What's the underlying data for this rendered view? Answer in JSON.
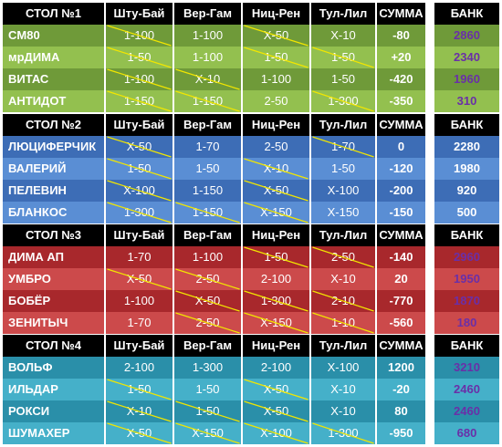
{
  "columns": [
    "Шту-Бай",
    "Вер-Гам",
    "Ниц-Рен",
    "Тул-Лил"
  ],
  "sum_label": "СУММА",
  "bank_label": "БАНК",
  "tables": [
    {
      "title": "СТОЛ №1",
      "color_dark": "#6f9a39",
      "color_light": "#93c04f",
      "rows": [
        {
          "name": "CM80",
          "cells": [
            "1-100",
            "1-100",
            "X-50",
            "X-10"
          ],
          "lost": [
            true,
            false,
            true,
            false
          ],
          "sum": "-80",
          "bank": "2860",
          "bank_color": "#6a2fa8"
        },
        {
          "name": "мрДИМА",
          "cells": [
            "1-50",
            "1-100",
            "1-50",
            "1-50"
          ],
          "lost": [
            true,
            false,
            true,
            true
          ],
          "sum": "+20",
          "bank": "2340",
          "bank_color": "#6a2fa8"
        },
        {
          "name": "ВИТАС",
          "cells": [
            "1-100",
            "X-10",
            "1-100",
            "1-50"
          ],
          "lost": [
            true,
            true,
            false,
            false
          ],
          "sum": "-420",
          "bank": "1960",
          "bank_color": "#6a2fa8"
        },
        {
          "name": "АНТИДОТ",
          "cells": [
            "1-150",
            "1-150",
            "2-50",
            "1-300"
          ],
          "lost": [
            true,
            true,
            false,
            true
          ],
          "sum": "-350",
          "bank": "310",
          "bank_color": "#6a2fa8"
        }
      ]
    },
    {
      "title": "СТОЛ №2",
      "color_dark": "#3d6db6",
      "color_light": "#5a8ed4",
      "rows": [
        {
          "name": "ЛЮЦИФЕРЧИК",
          "cells": [
            "X-50",
            "1-70",
            "2-50",
            "1-70"
          ],
          "lost": [
            true,
            false,
            false,
            true
          ],
          "sum": "0",
          "bank": "2280",
          "bank_color": "#ffffff"
        },
        {
          "name": "ВАЛЕРИЙ",
          "cells": [
            "1-50",
            "1-50",
            "X-10",
            "1-50"
          ],
          "lost": [
            true,
            false,
            true,
            false
          ],
          "sum": "-120",
          "bank": "1980",
          "bank_color": "#ffffff"
        },
        {
          "name": "ПЕЛЕВИН",
          "cells": [
            "X-100",
            "1-150",
            "X-50",
            "X-100"
          ],
          "lost": [
            true,
            false,
            true,
            false
          ],
          "sum": "-200",
          "bank": "920",
          "bank_color": "#ffffff"
        },
        {
          "name": "БЛАНКОС",
          "cells": [
            "1-300",
            "1-150",
            "X-150",
            "X-150"
          ],
          "lost": [
            true,
            true,
            true,
            false
          ],
          "sum": "-150",
          "bank": "500",
          "bank_color": "#ffffff"
        }
      ]
    },
    {
      "title": "СТОЛ №3",
      "color_dark": "#a8282c",
      "color_light": "#cc4a4b",
      "rows": [
        {
          "name": "ДИМА АП",
          "cells": [
            "1-70",
            "1-100",
            "1-50",
            "2-50"
          ],
          "lost": [
            false,
            false,
            true,
            true
          ],
          "sum": "-140",
          "bank": "2960",
          "bank_color": "#6a2fa8"
        },
        {
          "name": "УМБРО",
          "cells": [
            "X-50",
            "2-50",
            "2-100",
            "X-10"
          ],
          "lost": [
            true,
            true,
            false,
            false
          ],
          "sum": "20",
          "bank": "1950",
          "bank_color": "#6a2fa8"
        },
        {
          "name": "БОБЁР",
          "cells": [
            "1-100",
            "X-50",
            "1-300",
            "2-10"
          ],
          "lost": [
            false,
            true,
            true,
            true
          ],
          "sum": "-770",
          "bank": "1870",
          "bank_color": "#6a2fa8"
        },
        {
          "name": "ЗЕНИТЫЧ",
          "cells": [
            "1-70",
            "2-50",
            "Х-150",
            "1-10"
          ],
          "lost": [
            false,
            true,
            true,
            true
          ],
          "sum": "-560",
          "bank": "180",
          "bank_color": "#6a2fa8"
        }
      ]
    },
    {
      "title": "СТОЛ №4",
      "color_dark": "#2a8fa9",
      "color_light": "#45b0c9",
      "rows": [
        {
          "name": "ВОЛЬФ",
          "cells": [
            "2-100",
            "1-300",
            "2-100",
            "X-100"
          ],
          "lost": [
            false,
            false,
            false,
            false
          ],
          "sum": "1200",
          "bank": "3210",
          "bank_color": "#6a2fa8"
        },
        {
          "name": "ИЛЬДАР",
          "cells": [
            "1-50",
            "1-50",
            "X-50",
            "X-10"
          ],
          "lost": [
            true,
            false,
            true,
            false
          ],
          "sum": "-20",
          "bank": "2460",
          "bank_color": "#6a2fa8"
        },
        {
          "name": "РОКСИ",
          "cells": [
            "X-10",
            "1-50",
            "X-50",
            "X-10"
          ],
          "lost": [
            true,
            true,
            true,
            false
          ],
          "sum": "80",
          "bank": "2460",
          "bank_color": "#6a2fa8"
        },
        {
          "name": "ШУМАХЕР",
          "cells": [
            "X-50",
            "X-150",
            "X-100",
            "1-300"
          ],
          "lost": [
            true,
            true,
            true,
            true
          ],
          "sum": "-950",
          "bank": "680",
          "bank_color": "#6a2fa8"
        }
      ]
    }
  ]
}
